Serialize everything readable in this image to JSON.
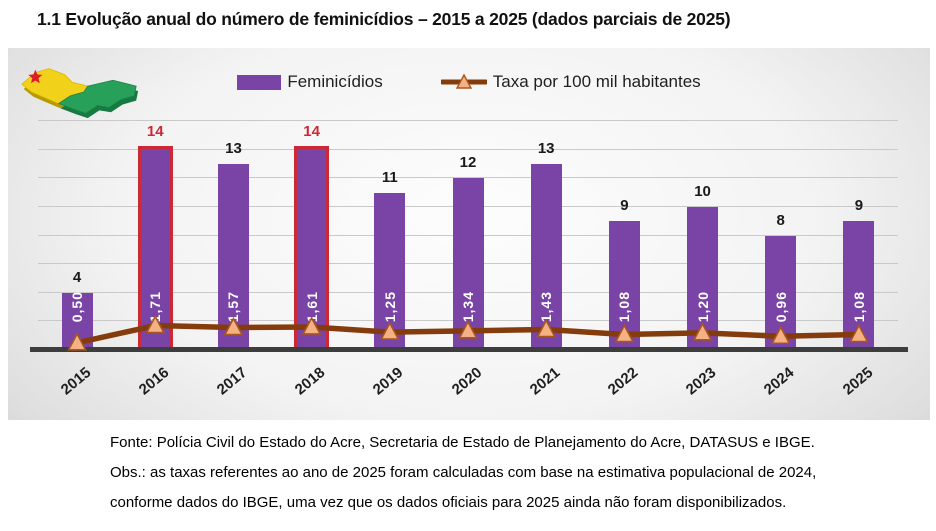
{
  "page": {
    "title": "1.1 Evolução anual do número de feminicídios – 2015 a 2025 (dados parciais de 2025)"
  },
  "legend": {
    "bars_label": "Feminicídios",
    "line_label": "Taxa por 100 mil habitantes"
  },
  "icons": {
    "map": "acre-state-map-3d-flag"
  },
  "colors": {
    "bar": "#7a43a6",
    "highlight": "#cc2936",
    "line": "#843c0c",
    "marker_fill": "#f4b183",
    "marker_stroke": "#a8561e",
    "gridline": "#c9c9c9",
    "axis": "#3d3d3d"
  },
  "chart_data": {
    "type": "bar",
    "subtype": "bar-with-line-overlay",
    "categories": [
      "2015",
      "2016",
      "2017",
      "2018",
      "2019",
      "2020",
      "2021",
      "2022",
      "2023",
      "2024",
      "2025"
    ],
    "series": [
      {
        "name": "Feminicídios",
        "type": "bar",
        "values": [
          4,
          14,
          13,
          14,
          11,
          12,
          13,
          9,
          10,
          8,
          9
        ],
        "highlight_indices": [
          1,
          3
        ]
      },
      {
        "name": "Taxa por 100 mil habitantes",
        "type": "line",
        "values": [
          0.5,
          1.71,
          1.57,
          1.61,
          1.25,
          1.34,
          1.43,
          1.08,
          1.2,
          0.96,
          1.08
        ],
        "value_labels": [
          "0,50",
          "1,71",
          "1,57",
          "1,61",
          "1,25",
          "1,34",
          "1,43",
          "1,08",
          "1,20",
          "0,96",
          "1,08"
        ]
      }
    ],
    "title": "Evolução anual do número de feminicídios – 2015 a 2025",
    "xlabel": "",
    "ylabel": "",
    "ylim": [
      0,
      16
    ],
    "grid_step": 2,
    "grid": true,
    "legend_position": "top-center"
  },
  "footer": {
    "line1": "Fonte: Polícia Civil do Estado do Acre, Secretaria de Estado de Planejamento do Acre, DATASUS e IBGE.",
    "line2": "Obs.: as taxas referentes ao ano de 2025 foram calculadas com base na estimativa populacional de 2024,",
    "line3": "conforme dados do IBGE, uma vez que os dados oficiais para 2025 ainda não foram disponibilizados."
  }
}
